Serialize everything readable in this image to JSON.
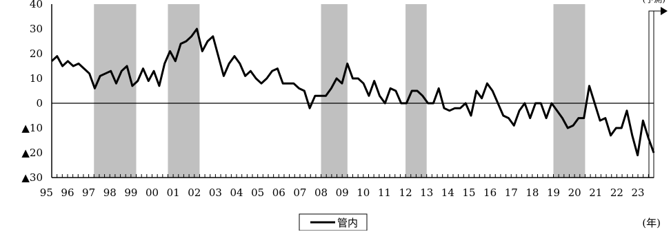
{
  "chart_data": {
    "type": "line",
    "title": "",
    "xlabel": "(年)",
    "ylabel": "",
    "x_start_year": 1995.25,
    "x_end_year": 2023.75,
    "ylim": [
      -30,
      40
    ],
    "y_ticks": [
      {
        "value": 40,
        "label": "40"
      },
      {
        "value": 30,
        "label": "30"
      },
      {
        "value": 20,
        "label": "20"
      },
      {
        "value": 10,
        "label": "10"
      },
      {
        "value": 0,
        "label": "0"
      },
      {
        "value": -10,
        "label": "▲10"
      },
      {
        "value": -20,
        "label": "▲20"
      },
      {
        "value": -30,
        "label": "▲30"
      }
    ],
    "x_tick_labels": [
      "95",
      "96",
      "97",
      "98",
      "99",
      "00",
      "01",
      "02",
      "03",
      "04",
      "05",
      "06",
      "07",
      "08",
      "09",
      "10",
      "11",
      "12",
      "13",
      "14",
      "15",
      "16",
      "17",
      "18",
      "19",
      "20",
      "21",
      "22",
      "23"
    ],
    "recession_shading": [
      [
        1997.25,
        1999.25
      ],
      [
        2000.75,
        2002.25
      ],
      [
        2008.0,
        2009.25
      ],
      [
        2012.0,
        2013.0
      ],
      [
        2019.0,
        2020.5
      ]
    ],
    "forecast_marker_label": "(予測)",
    "legend": {
      "entries": [
        "管内"
      ],
      "position": "bottom-center"
    },
    "series": [
      {
        "name": "管内",
        "color": "#000000",
        "values": [
          17,
          19,
          15,
          17,
          15,
          16,
          14,
          12,
          6,
          11,
          12,
          13,
          8,
          13,
          15,
          7,
          9,
          14,
          9,
          13,
          7,
          16,
          21,
          17,
          24,
          25,
          27,
          30,
          21,
          25,
          27,
          19,
          11,
          16,
          19,
          16,
          11,
          13,
          10,
          8,
          10,
          13,
          14,
          8,
          8,
          8,
          6,
          5,
          -2,
          3,
          3,
          3,
          6,
          10,
          8,
          16,
          10,
          10,
          8,
          3,
          9,
          3,
          0,
          6,
          5,
          0,
          0,
          5,
          5,
          3,
          0,
          0,
          6,
          -2,
          -3,
          -2,
          -2,
          0,
          -5,
          5,
          2,
          8,
          5,
          0,
          -5,
          -6,
          -9,
          -3,
          0,
          -6,
          0,
          0,
          -6,
          0,
          -3,
          -6,
          -10,
          -9,
          -6,
          -6,
          7,
          0,
          -7,
          -6,
          -13,
          -10,
          -10,
          -3,
          -13,
          -21,
          -7,
          -14,
          -20
        ]
      }
    ]
  }
}
